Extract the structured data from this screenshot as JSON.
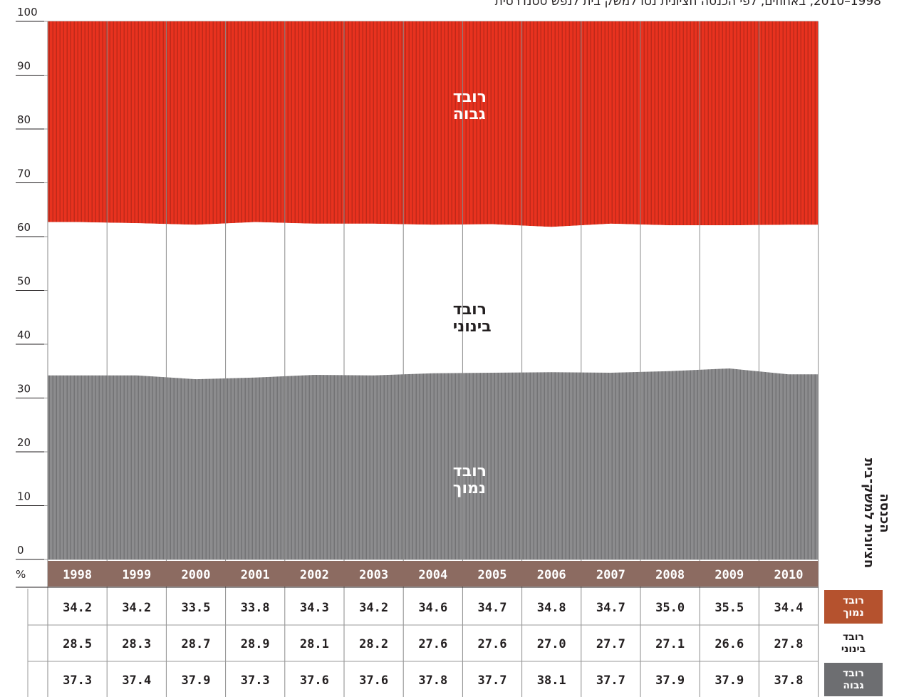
{
  "subtitle": "1998–2010, באחוזים, לפי הכנסה חציונית נטו למשק בית לנפש סטנדרטית",
  "y_axis_title": "הכנסה חציונית למשק־בית",
  "percent_symbol": "%",
  "colors": {
    "high": "#e8321f",
    "middle": "#ffffff",
    "low": "#8c8c8e",
    "year_band": "#8c6b61",
    "low_label_bg": "#b5522e",
    "mid_label_bg": "#ffffff",
    "high_label_bg": "#6d6e71"
  },
  "chart_data": {
    "type": "area",
    "stacked": true,
    "normalized_to": 100,
    "ylim": [
      0,
      100
    ],
    "yticks": [
      0,
      10,
      20,
      30,
      40,
      50,
      60,
      70,
      80,
      90,
      100
    ],
    "categories": [
      "1998",
      "1999",
      "2000",
      "2001",
      "2002",
      "2003",
      "2004",
      "2005",
      "2006",
      "2007",
      "2008",
      "2009",
      "2010"
    ],
    "series": [
      {
        "key": "low",
        "name": "רובד נמוך",
        "values": [
          34.2,
          34.2,
          33.5,
          33.8,
          34.3,
          34.2,
          34.6,
          34.7,
          34.8,
          34.7,
          35.0,
          35.5,
          34.4
        ]
      },
      {
        "key": "middle",
        "name": "רובד בינוני",
        "values": [
          28.5,
          28.3,
          28.7,
          28.9,
          28.1,
          28.2,
          27.6,
          27.6,
          27.0,
          27.7,
          27.1,
          26.6,
          27.8
        ]
      },
      {
        "key": "high",
        "name": "רובד גבוה",
        "values": [
          37.3,
          37.4,
          37.9,
          37.3,
          37.6,
          37.6,
          37.8,
          37.7,
          38.1,
          37.7,
          37.9,
          37.9,
          37.8
        ]
      }
    ],
    "band_labels": {
      "high": [
        "רובד",
        "גבוה"
      ],
      "middle": [
        "רובד",
        "בינוני"
      ],
      "low": [
        "רובד",
        "נמוך"
      ]
    },
    "row_labels": {
      "low": [
        "רובד",
        "נמוך"
      ],
      "middle": [
        "רובד",
        "בינוני"
      ],
      "high": [
        "רובד",
        "גבוה"
      ]
    }
  }
}
